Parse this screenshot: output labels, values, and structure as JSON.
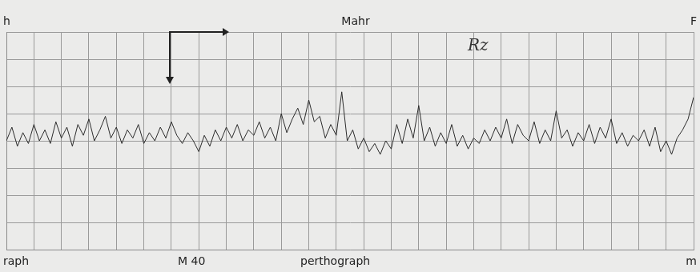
{
  "chart_data": {
    "type": "line",
    "title": "Mahr",
    "annotations": [
      "Rz",
      "M 40",
      "perthograph",
      "h",
      "F",
      "raph",
      "m"
    ],
    "x": [
      0,
      0.2,
      0.4,
      0.6,
      0.8,
      1,
      1.2,
      1.4,
      1.6,
      1.8,
      2,
      2.2,
      2.4,
      2.6,
      2.8,
      3,
      3.2,
      3.4,
      3.6,
      3.8,
      4,
      4.2,
      4.4,
      4.6,
      4.8,
      5,
      5.2,
      5.4,
      5.6,
      5.8,
      6,
      6.2,
      6.4,
      6.6,
      6.8,
      7,
      7.2,
      7.4,
      7.6,
      7.8,
      8,
      8.2,
      8.4,
      8.6,
      8.8,
      9,
      9.2,
      9.4,
      9.6,
      9.8,
      10,
      10.2,
      10.4,
      10.6,
      10.8,
      11,
      11.2,
      11.4,
      11.6,
      11.8,
      12,
      12.2,
      12.4,
      12.6,
      12.8,
      13,
      13.2,
      13.4,
      13.6,
      13.8,
      14,
      14.2,
      14.4,
      14.6,
      14.8,
      15,
      15.2,
      15.4,
      15.6,
      15.8,
      16,
      16.2,
      16.4,
      16.6,
      16.8,
      17,
      17.2,
      17.4,
      17.6,
      17.8,
      18,
      18.2,
      18.4,
      18.6,
      18.8,
      19,
      19.2,
      19.4,
      19.6,
      19.8,
      20,
      20.2,
      20.4,
      20.6,
      20.8,
      21,
      21.2,
      21.4,
      21.6,
      21.8,
      22,
      22.2,
      22.4,
      22.6,
      22.8,
      23,
      23.2,
      23.4,
      23.6,
      23.8,
      24,
      24.2,
      24.4,
      24.6,
      24.8,
      25
    ],
    "values": [
      4.0,
      4.5,
      3.8,
      4.3,
      3.9,
      4.6,
      4.0,
      4.4,
      3.9,
      4.7,
      4.1,
      4.5,
      3.8,
      4.6,
      4.2,
      4.8,
      4.0,
      4.4,
      4.9,
      4.1,
      4.5,
      3.9,
      4.4,
      4.1,
      4.6,
      3.9,
      4.3,
      4.0,
      4.5,
      4.1,
      4.7,
      4.2,
      3.9,
      4.3,
      4.0,
      3.6,
      4.2,
      3.8,
      4.4,
      4.0,
      4.5,
      4.1,
      4.6,
      4.0,
      4.4,
      4.2,
      4.7,
      4.1,
      4.5,
      4.0,
      5.0,
      4.3,
      4.8,
      5.2,
      4.6,
      5.5,
      4.7,
      4.9,
      4.1,
      4.6,
      4.2,
      5.8,
      4.0,
      4.4,
      3.7,
      4.1,
      3.6,
      3.9,
      3.5,
      4.0,
      3.7,
      4.6,
      3.9,
      4.8,
      4.1,
      5.3,
      4.0,
      4.5,
      3.8,
      4.3,
      3.9,
      4.6,
      3.8,
      4.2,
      3.7,
      4.1,
      3.9,
      4.4,
      4.0,
      4.5,
      4.1,
      4.8,
      3.9,
      4.6,
      4.2,
      4.0,
      4.7,
      3.9,
      4.4,
      4.0,
      5.1,
      4.1,
      4.4,
      3.8,
      4.3,
      4.0,
      4.6,
      3.9,
      4.5,
      4.1,
      4.8,
      3.9,
      4.3,
      3.8,
      4.2,
      4.0,
      4.4,
      3.8,
      4.5,
      3.6,
      4.0,
      3.5,
      4.1,
      4.4,
      4.8,
      5.6
    ],
    "color": "#2b2b2b",
    "xlim": [
      0,
      25
    ],
    "xticks": [
      0,
      1,
      2,
      3,
      4,
      5,
      6,
      7,
      8,
      9,
      10,
      11,
      12,
      13,
      14,
      15,
      16,
      17,
      18,
      19,
      20,
      21,
      22,
      23,
      24,
      25
    ],
    "ylim": [
      0,
      8
    ],
    "yticks": [
      0,
      1,
      2,
      3,
      4,
      5,
      6,
      7,
      8
    ],
    "grid": true,
    "tick_labels": false
  }
}
